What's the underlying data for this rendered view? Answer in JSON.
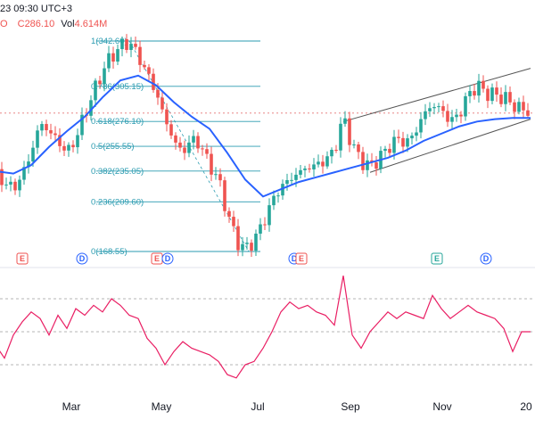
{
  "header": {
    "time_text": "23 09:30 UTC+3",
    "close_text": "C286.10",
    "close_prefix": "O",
    "vol_label": "Vol",
    "vol_value": "4.614M"
  },
  "colors": {
    "up": "#26a69a",
    "down": "#ef5350",
    "ma": "#2962ff",
    "fib": "#2a9bb0",
    "rsi": "#e91e63",
    "wedge": "#555555"
  },
  "chart_data": {
    "type": "candlestick",
    "fib_levels": [
      {
        "ratio": "1",
        "price": 342.6
      },
      {
        "ratio": "0.786",
        "price": 305.15
      },
      {
        "ratio": "0.618",
        "price": 276.1
      },
      {
        "ratio": "0.5",
        "price": 255.55
      },
      {
        "ratio": "0.382",
        "price": 235.05
      },
      {
        "ratio": "0.236",
        "price": 209.6
      },
      {
        "ratio": "0",
        "price": 168.55
      }
    ],
    "fib_label_texts": [
      "1(342.60)",
      "0.786(305.15)",
      "0.618(276.10)",
      "0.5(255.55)",
      "0.382(235.05)",
      "0.236(209.60)",
      "0(168.55)"
    ],
    "x_tick_labels": [
      "Mar",
      "May",
      "Jul",
      "Sep",
      "Nov",
      "20"
    ],
    "event_markers": [
      {
        "type": "E",
        "month": "Feb"
      },
      {
        "type": "D",
        "month": "Mar"
      },
      {
        "type": "E",
        "month": "May"
      },
      {
        "type": "D",
        "month": "May"
      },
      {
        "type": "D",
        "month": "Aug"
      },
      {
        "type": "E",
        "month": "Aug"
      },
      {
        "type": "E",
        "month": "Nov"
      },
      {
        "type": "D",
        "month": "Dec"
      }
    ],
    "price_path": [
      [
        0,
        232
      ],
      [
        5,
        226
      ],
      [
        10,
        220
      ],
      [
        15,
        232
      ],
      [
        20,
        250
      ],
      [
        25,
        275
      ],
      [
        30,
        268
      ],
      [
        35,
        260
      ],
      [
        40,
        250
      ],
      [
        45,
        262
      ],
      [
        50,
        282
      ],
      [
        55,
        300
      ],
      [
        60,
        318
      ],
      [
        65,
        330
      ],
      [
        70,
        338
      ],
      [
        75,
        342
      ],
      [
        80,
        330
      ],
      [
        85,
        316
      ],
      [
        90,
        300
      ],
      [
        95,
        278
      ],
      [
        100,
        260
      ],
      [
        105,
        250
      ],
      [
        110,
        262
      ],
      [
        115,
        256
      ],
      [
        120,
        240
      ],
      [
        125,
        228
      ],
      [
        130,
        200
      ],
      [
        135,
        178
      ],
      [
        140,
        170
      ],
      [
        145,
        178
      ],
      [
        150,
        192
      ],
      [
        155,
        210
      ],
      [
        160,
        222
      ],
      [
        165,
        228
      ],
      [
        170,
        234
      ],
      [
        175,
        238
      ],
      [
        180,
        240
      ],
      [
        185,
        244
      ],
      [
        190,
        252
      ],
      [
        195,
        280
      ],
      [
        200,
        256
      ],
      [
        205,
        244
      ],
      [
        210,
        238
      ],
      [
        215,
        246
      ],
      [
        220,
        254
      ],
      [
        225,
        262
      ],
      [
        230,
        258
      ],
      [
        235,
        266
      ],
      [
        240,
        282
      ],
      [
        245,
        290
      ],
      [
        250,
        286
      ],
      [
        255,
        276
      ],
      [
        260,
        282
      ],
      [
        265,
        298
      ],
      [
        270,
        306
      ],
      [
        275,
        300
      ],
      [
        280,
        298
      ],
      [
        285,
        296
      ],
      [
        290,
        290
      ],
      [
        295,
        286
      ],
      [
        300,
        284
      ]
    ],
    "ma_path": [
      [
        0,
        235
      ],
      [
        10,
        233
      ],
      [
        20,
        240
      ],
      [
        30,
        255
      ],
      [
        40,
        268
      ],
      [
        50,
        280
      ],
      [
        60,
        296
      ],
      [
        70,
        310
      ],
      [
        80,
        314
      ],
      [
        90,
        306
      ],
      [
        100,
        292
      ],
      [
        110,
        280
      ],
      [
        120,
        270
      ],
      [
        130,
        250
      ],
      [
        140,
        228
      ],
      [
        150,
        214
      ],
      [
        160,
        220
      ],
      [
        170,
        226
      ],
      [
        180,
        230
      ],
      [
        190,
        234
      ],
      [
        200,
        238
      ],
      [
        210,
        242
      ],
      [
        220,
        246
      ],
      [
        230,
        252
      ],
      [
        240,
        260
      ],
      [
        250,
        266
      ],
      [
        260,
        272
      ],
      [
        270,
        276
      ],
      [
        280,
        278
      ],
      [
        290,
        279
      ],
      [
        300,
        279
      ]
    ],
    "resistance_price": 283,
    "wedge_upper": [
      [
        195,
        276
      ],
      [
        300,
        320
      ]
    ],
    "wedge_lower": [
      [
        210,
        234
      ],
      [
        300,
        278
      ]
    ],
    "rsi_levels": [
      70,
      50,
      30
    ],
    "rsi_values": [
      [
        0,
        42
      ],
      [
        5,
        34
      ],
      [
        10,
        48
      ],
      [
        15,
        56
      ],
      [
        20,
        62
      ],
      [
        25,
        58
      ],
      [
        30,
        48
      ],
      [
        35,
        60
      ],
      [
        40,
        52
      ],
      [
        45,
        64
      ],
      [
        50,
        60
      ],
      [
        55,
        66
      ],
      [
        60,
        62
      ],
      [
        65,
        70
      ],
      [
        70,
        66
      ],
      [
        75,
        60
      ],
      [
        80,
        58
      ],
      [
        85,
        46
      ],
      [
        90,
        40
      ],
      [
        95,
        30
      ],
      [
        100,
        38
      ],
      [
        105,
        44
      ],
      [
        110,
        40
      ],
      [
        115,
        38
      ],
      [
        120,
        36
      ],
      [
        125,
        32
      ],
      [
        130,
        24
      ],
      [
        135,
        22
      ],
      [
        140,
        30
      ],
      [
        145,
        32
      ],
      [
        150,
        40
      ],
      [
        155,
        50
      ],
      [
        160,
        62
      ],
      [
        165,
        68
      ],
      [
        170,
        64
      ],
      [
        175,
        66
      ],
      [
        180,
        62
      ],
      [
        185,
        60
      ],
      [
        190,
        54
      ],
      [
        195,
        84
      ],
      [
        200,
        48
      ],
      [
        205,
        40
      ],
      [
        210,
        50
      ],
      [
        215,
        56
      ],
      [
        220,
        62
      ],
      [
        225,
        58
      ],
      [
        230,
        62
      ],
      [
        235,
        60
      ],
      [
        240,
        58
      ],
      [
        245,
        72
      ],
      [
        250,
        64
      ],
      [
        255,
        58
      ],
      [
        260,
        62
      ],
      [
        265,
        66
      ],
      [
        270,
        62
      ],
      [
        275,
        60
      ],
      [
        280,
        58
      ],
      [
        285,
        52
      ],
      [
        290,
        38
      ],
      [
        295,
        50
      ],
      [
        300,
        50
      ]
    ],
    "grid": false
  }
}
